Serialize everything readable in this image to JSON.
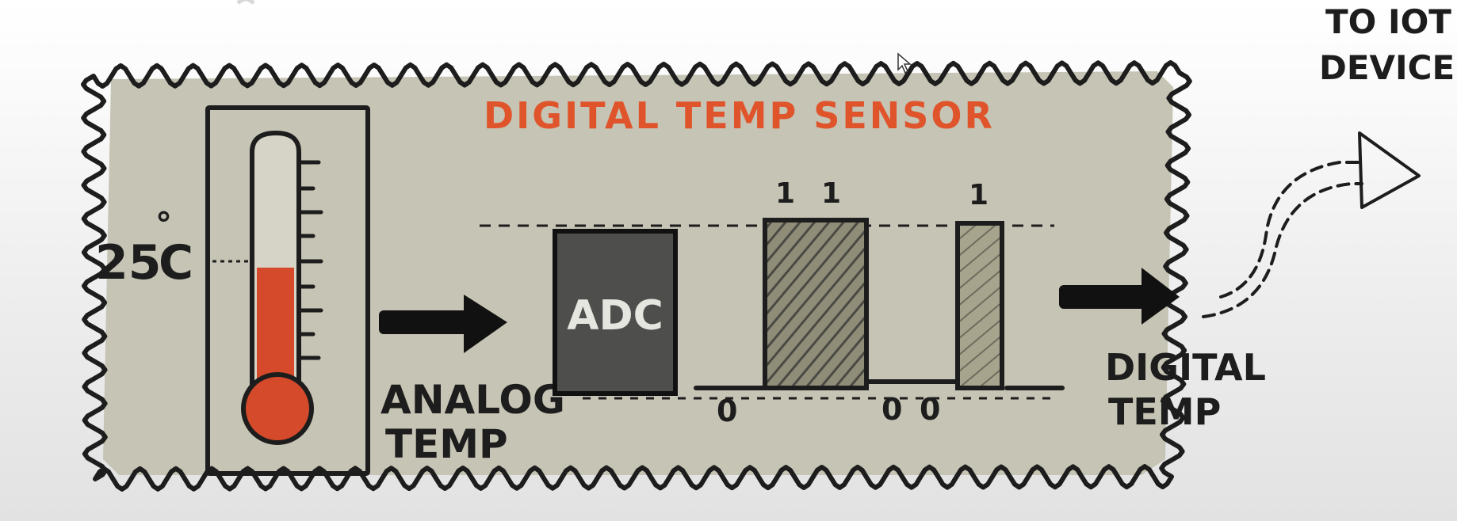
{
  "diagram": {
    "title": "DIGITAL TEMP SENSOR",
    "thermometer": {
      "reading_label": "25°C",
      "degree_symbol": "°",
      "value_text": "25",
      "unit_letter": "C"
    },
    "analog_label": [
      "ANALOG",
      "TEMP"
    ],
    "adc_label": "ADC",
    "bit_labels": {
      "ones": [
        "1",
        "1",
        "1"
      ],
      "zeros": [
        "0",
        "0",
        "0"
      ]
    },
    "digital_label": [
      "DIGITAL",
      "TEMP"
    ],
    "destination_label": [
      "TO IOT",
      "DEVICE"
    ]
  },
  "colors": {
    "panel_fill": "#c6c4b4",
    "ink": "#1d1d1d",
    "accent": "#e0542c",
    "mercury": "#d44a2a",
    "adc_fill": "#4e4e4c",
    "adc_text": "#e6e6e0",
    "pulse_fill": "#9c9a82"
  }
}
